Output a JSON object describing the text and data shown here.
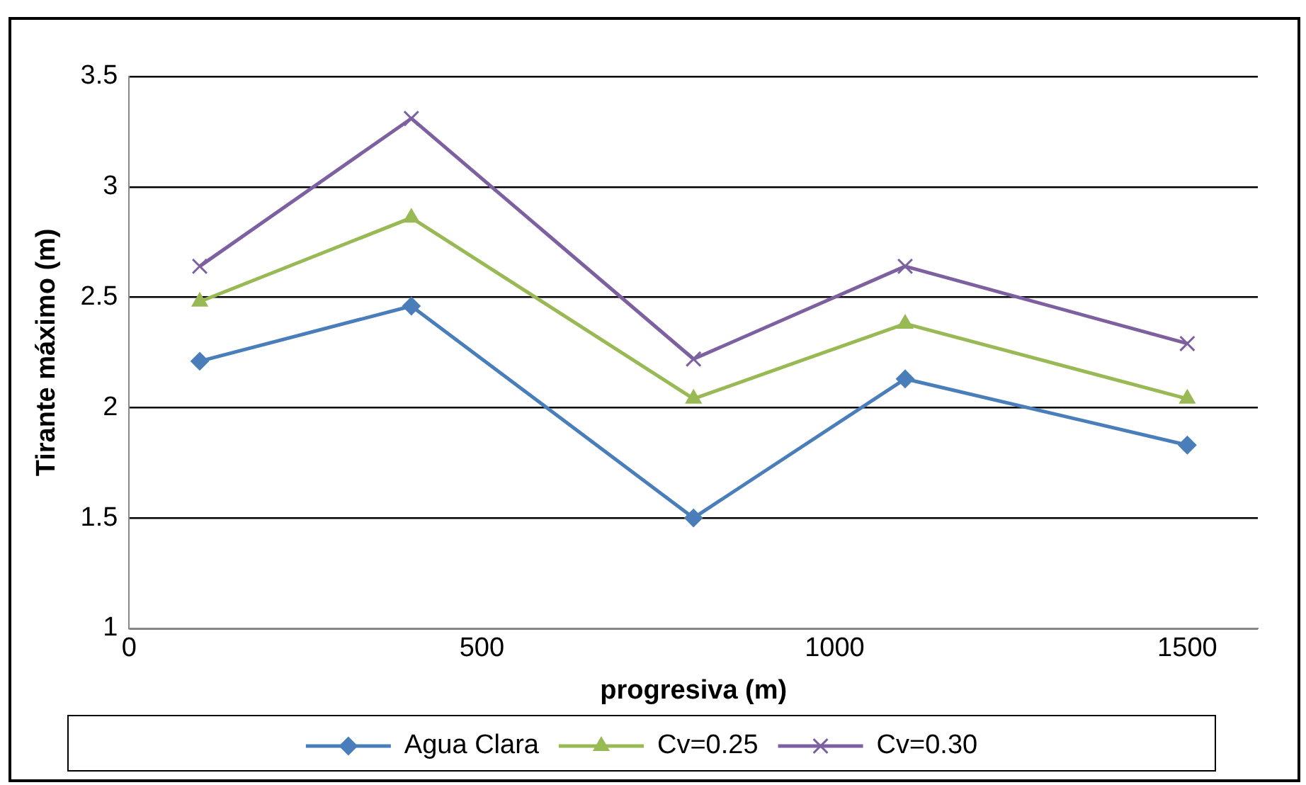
{
  "chart_data": {
    "type": "line",
    "xlabel": "progresiva (m)",
    "ylabel": "Tirante máximo (m)",
    "x": [
      100,
      400,
      800,
      1100,
      1500
    ],
    "series": [
      {
        "name": "Agua Clara",
        "color": "#4a7ebb",
        "marker": "diamond",
        "values": [
          2.21,
          2.46,
          1.5,
          2.13,
          1.83
        ]
      },
      {
        "name": "Cv=0.25",
        "color": "#98b954",
        "marker": "triangle",
        "values": [
          2.48,
          2.86,
          2.04,
          2.38,
          2.04
        ]
      },
      {
        "name": "Cv=0.30",
        "color": "#7d60a0",
        "marker": "cross",
        "values": [
          2.64,
          3.31,
          2.22,
          2.64,
          2.29
        ]
      }
    ],
    "xlim": [
      0,
      1600
    ],
    "xticks": [
      0,
      500,
      1000,
      1500
    ],
    "ylim": [
      1,
      3.5
    ],
    "yticks": [
      1,
      1.5,
      2,
      2.5,
      3,
      3.5
    ],
    "grid": "y",
    "legend": "bottom",
    "line_style": "solid"
  }
}
